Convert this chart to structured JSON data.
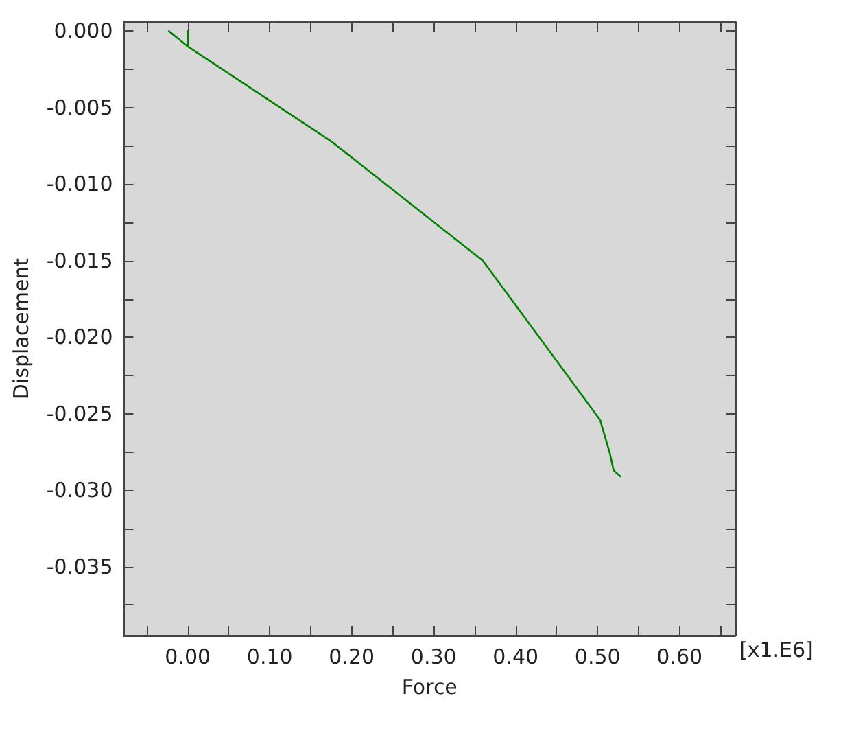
{
  "chart_data": {
    "type": "line",
    "xlabel": "Force",
    "ylabel": "Displacement",
    "annotations": [
      "[x1.E6]"
    ],
    "xlim": [
      -0.078,
      0.668
    ],
    "ylim": [
      -0.0395,
      0.0006
    ],
    "xticks": [
      {
        "value": -0.05,
        "label": null
      },
      {
        "value": 0,
        "label": "0.00"
      },
      {
        "value": 0.05,
        "label": null
      },
      {
        "value": 0.1,
        "label": "0.10"
      },
      {
        "value": 0.15,
        "label": null
      },
      {
        "value": 0.2,
        "label": "0.20"
      },
      {
        "value": 0.25,
        "label": null
      },
      {
        "value": 0.3,
        "label": "0.30"
      },
      {
        "value": 0.35,
        "label": null
      },
      {
        "value": 0.4,
        "label": "0.40"
      },
      {
        "value": 0.45,
        "label": null
      },
      {
        "value": 0.5,
        "label": "0.50"
      },
      {
        "value": 0.55,
        "label": null
      },
      {
        "value": 0.6,
        "label": "0.60"
      },
      {
        "value": 0.65,
        "label": null
      }
    ],
    "yticks": [
      {
        "value": 0,
        "label": "0.000"
      },
      {
        "value": -0.0025,
        "label": null
      },
      {
        "value": -0.005,
        "label": "-0.005"
      },
      {
        "value": -0.0075,
        "label": null
      },
      {
        "value": -0.01,
        "label": "-0.010"
      },
      {
        "value": -0.0125,
        "label": null
      },
      {
        "value": -0.015,
        "label": "-0.015"
      },
      {
        "value": -0.0175,
        "label": null
      },
      {
        "value": -0.02,
        "label": "-0.020"
      },
      {
        "value": -0.0225,
        "label": null
      },
      {
        "value": -0.025,
        "label": "-0.025"
      },
      {
        "value": -0.0275,
        "label": null
      },
      {
        "value": -0.03,
        "label": "-0.030"
      },
      {
        "value": -0.0325,
        "label": null
      },
      {
        "value": -0.035,
        "label": "-0.035"
      },
      {
        "value": -0.0375,
        "label": null
      }
    ],
    "grid": false,
    "marker": "none",
    "line_style": "solid",
    "series": [
      {
        "color": "#008000",
        "x": [
          -0.023,
          0,
          0.175,
          0.36,
          0.503,
          0.515,
          0.5195,
          0.528
        ],
        "values": [
          0,
          -0.001,
          -0.0072,
          -0.015,
          -0.0254,
          -0.0276,
          -0.0287,
          -0.0291
        ]
      },
      {
        "color": "#008000",
        "x": [
          0,
          0
        ],
        "values": [
          0,
          -0.001
        ]
      }
    ]
  }
}
